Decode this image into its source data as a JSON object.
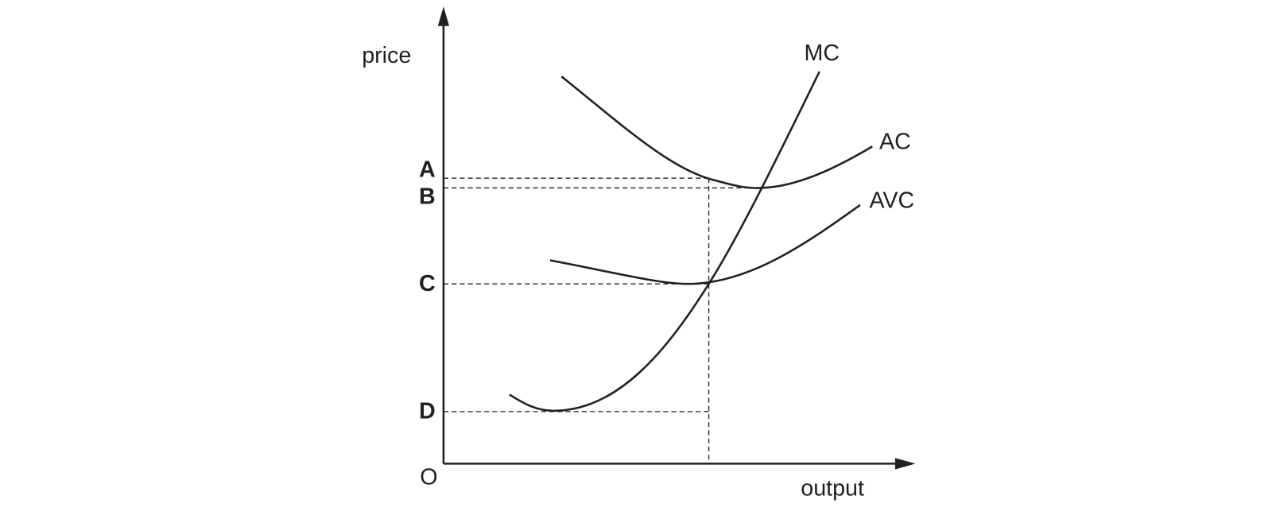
{
  "axes": {
    "y_label": "price",
    "x_label": "output",
    "origin": "O"
  },
  "curves": [
    {
      "label": "MC"
    },
    {
      "label": "AC"
    },
    {
      "label": "AVC"
    }
  ],
  "levels": [
    {
      "label": "A"
    },
    {
      "label": "B"
    },
    {
      "label": "C"
    },
    {
      "label": "D"
    }
  ]
}
